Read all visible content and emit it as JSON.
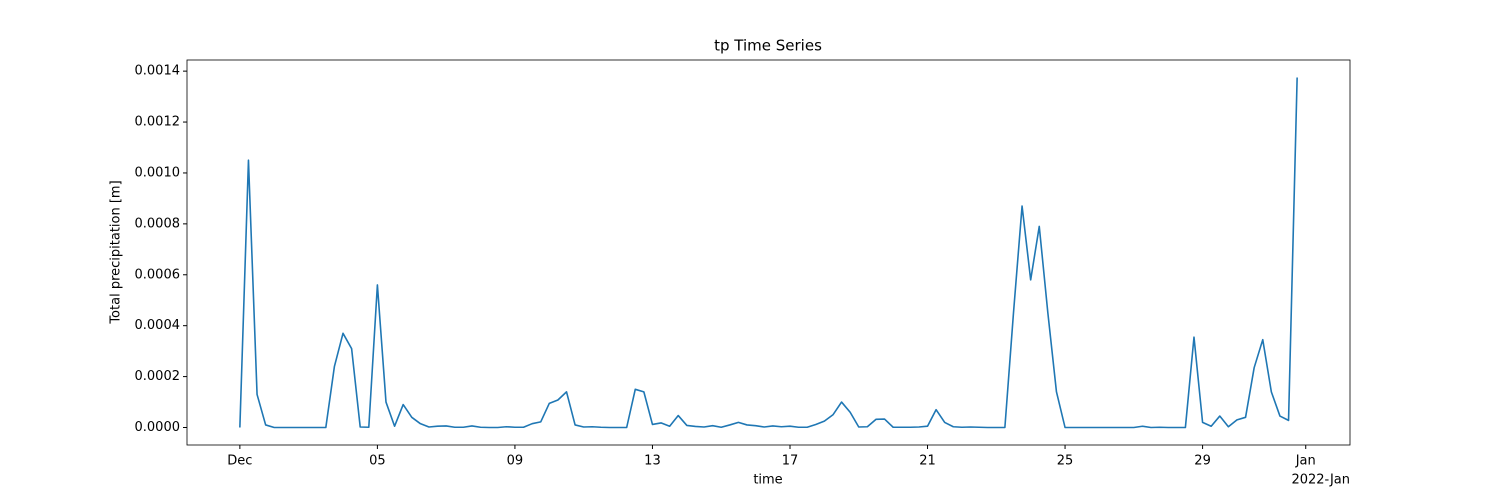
{
  "chart_data": {
    "type": "line",
    "title": "tp Time Series",
    "xlabel": "time",
    "ylabel": "Total precipitation [m]",
    "x_offset_label": "2022-Jan",
    "color": "#1f77b4",
    "x": [
      "2021-12-01T00:00",
      "2021-12-01T06:00",
      "2021-12-01T12:00",
      "2021-12-01T18:00",
      "2021-12-02T00:00",
      "2021-12-02T06:00",
      "2021-12-02T12:00",
      "2021-12-02T18:00",
      "2021-12-03T00:00",
      "2021-12-03T06:00",
      "2021-12-03T12:00",
      "2021-12-03T18:00",
      "2021-12-04T00:00",
      "2021-12-04T06:00",
      "2021-12-04T12:00",
      "2021-12-04T18:00",
      "2021-12-05T00:00",
      "2021-12-05T06:00",
      "2021-12-05T12:00",
      "2021-12-05T18:00",
      "2021-12-06T00:00",
      "2021-12-06T06:00",
      "2021-12-06T12:00",
      "2021-12-06T18:00",
      "2021-12-07T00:00",
      "2021-12-07T06:00",
      "2021-12-07T12:00",
      "2021-12-07T18:00",
      "2021-12-08T00:00",
      "2021-12-08T06:00",
      "2021-12-08T12:00",
      "2021-12-08T18:00",
      "2021-12-09T00:00",
      "2021-12-09T06:00",
      "2021-12-09T12:00",
      "2021-12-09T18:00",
      "2021-12-10T00:00",
      "2021-12-10T06:00",
      "2021-12-10T12:00",
      "2021-12-10T18:00",
      "2021-12-11T00:00",
      "2021-12-11T06:00",
      "2021-12-11T12:00",
      "2021-12-11T18:00",
      "2021-12-12T00:00",
      "2021-12-12T06:00",
      "2021-12-12T12:00",
      "2021-12-12T18:00",
      "2021-12-13T00:00",
      "2021-12-13T06:00",
      "2021-12-13T12:00",
      "2021-12-13T18:00",
      "2021-12-14T00:00",
      "2021-12-14T06:00",
      "2021-12-14T12:00",
      "2021-12-14T18:00",
      "2021-12-15T00:00",
      "2021-12-15T06:00",
      "2021-12-15T12:00",
      "2021-12-15T18:00",
      "2021-12-16T00:00",
      "2021-12-16T06:00",
      "2021-12-16T12:00",
      "2021-12-16T18:00",
      "2021-12-17T00:00",
      "2021-12-17T06:00",
      "2021-12-17T12:00",
      "2021-12-17T18:00",
      "2021-12-18T00:00",
      "2021-12-18T06:00",
      "2021-12-18T12:00",
      "2021-12-18T18:00",
      "2021-12-19T00:00",
      "2021-12-19T06:00",
      "2021-12-19T12:00",
      "2021-12-19T18:00",
      "2021-12-20T00:00",
      "2021-12-20T06:00",
      "2021-12-20T12:00",
      "2021-12-20T18:00",
      "2021-12-21T00:00",
      "2021-12-21T06:00",
      "2021-12-21T12:00",
      "2021-12-21T18:00",
      "2021-12-22T00:00",
      "2021-12-22T06:00",
      "2021-12-22T12:00",
      "2021-12-22T18:00",
      "2021-12-23T00:00",
      "2021-12-23T06:00",
      "2021-12-23T12:00",
      "2021-12-23T18:00",
      "2021-12-24T00:00",
      "2021-12-24T06:00",
      "2021-12-24T12:00",
      "2021-12-24T18:00",
      "2021-12-25T00:00",
      "2021-12-25T06:00",
      "2021-12-25T12:00",
      "2021-12-25T18:00",
      "2021-12-26T00:00",
      "2021-12-26T06:00",
      "2021-12-26T12:00",
      "2021-12-26T18:00",
      "2021-12-27T00:00",
      "2021-12-27T06:00",
      "2021-12-27T12:00",
      "2021-12-27T18:00",
      "2021-12-28T00:00",
      "2021-12-28T06:00",
      "2021-12-28T12:00",
      "2021-12-28T18:00",
      "2021-12-29T00:00",
      "2021-12-29T06:00",
      "2021-12-29T12:00",
      "2021-12-29T18:00",
      "2021-12-30T00:00",
      "2021-12-30T06:00",
      "2021-12-30T12:00",
      "2021-12-30T18:00",
      "2021-12-31T00:00",
      "2021-12-31T06:00",
      "2021-12-31T12:00",
      "2021-12-31T18:00"
    ],
    "values": [
      0,
      0.00105,
      0.00013,
      1e-05,
      0,
      0,
      0,
      0,
      0,
      0,
      0,
      0.00024,
      0.00037,
      0.00031,
      2e-06,
      1e-06,
      0.00056,
      0.0001,
      5e-06,
      9e-05,
      4e-05,
      1.5e-05,
      2e-06,
      5e-06,
      6e-06,
      1e-06,
      1e-06,
      6e-06,
      1e-06,
      0,
      0,
      3e-06,
      1e-06,
      1e-06,
      1.5e-05,
      2.2e-05,
      9.5e-05,
      0.000108,
      0.00014,
      1e-05,
      2e-06,
      3e-06,
      1e-06,
      0,
      0,
      0,
      0.00015,
      0.00014,
      1.2e-05,
      1.8e-05,
      5e-06,
      4.7e-05,
      8e-06,
      4e-06,
      2e-06,
      7e-06,
      1e-06,
      1e-05,
      2e-05,
      1e-05,
      7e-06,
      2e-06,
      6e-06,
      3e-06,
      5e-06,
      1e-06,
      1e-06,
      1.2e-05,
      2.5e-05,
      5e-05,
      0.0001,
      6e-05,
      2e-06,
      3e-06,
      3.2e-05,
      3.3e-05,
      1e-06,
      1e-06,
      1e-06,
      2e-06,
      5e-06,
      7e-05,
      2e-05,
      3e-06,
      1e-06,
      2e-06,
      1e-06,
      0,
      0,
      0,
      0.00045,
      0.00087,
      0.00058,
      0.00079,
      0.00045,
      0.00014,
      0,
      0,
      0,
      0,
      0,
      0,
      0,
      0,
      0,
      5e-06,
      0,
      1e-06,
      0,
      0,
      0,
      0.000355,
      2e-05,
      5e-06,
      4.5e-05,
      3e-06,
      3e-05,
      4e-05,
      0.000235,
      0.000345,
      0.00014,
      4.5e-05,
      2.8e-05,
      0.001375
    ],
    "xlim": [
      "2021-11-29T11:06",
      "2022-01-02T06:54"
    ],
    "xticks": [
      {
        "value": "2021-12-01",
        "label": "Dec"
      },
      {
        "value": "2021-12-05",
        "label": "05"
      },
      {
        "value": "2021-12-09",
        "label": "09"
      },
      {
        "value": "2021-12-13",
        "label": "13"
      },
      {
        "value": "2021-12-17",
        "label": "17"
      },
      {
        "value": "2021-12-21",
        "label": "21"
      },
      {
        "value": "2021-12-25",
        "label": "25"
      },
      {
        "value": "2021-12-29",
        "label": "29"
      },
      {
        "value": "2022-01-01",
        "label": "Jan"
      }
    ],
    "ylim": [
      -6.875e-05,
      0.00144375
    ],
    "yticks": [
      {
        "value": 0,
        "label": "0.0000"
      },
      {
        "value": 0.0002,
        "label": "0.0002"
      },
      {
        "value": 0.0004,
        "label": "0.0004"
      },
      {
        "value": 0.0006,
        "label": "0.0006"
      },
      {
        "value": 0.0008,
        "label": "0.0008"
      },
      {
        "value": 0.001,
        "label": "0.0010"
      },
      {
        "value": 0.0012,
        "label": "0.0012"
      },
      {
        "value": 0.0014,
        "label": "0.0014"
      }
    ],
    "grid": false
  }
}
